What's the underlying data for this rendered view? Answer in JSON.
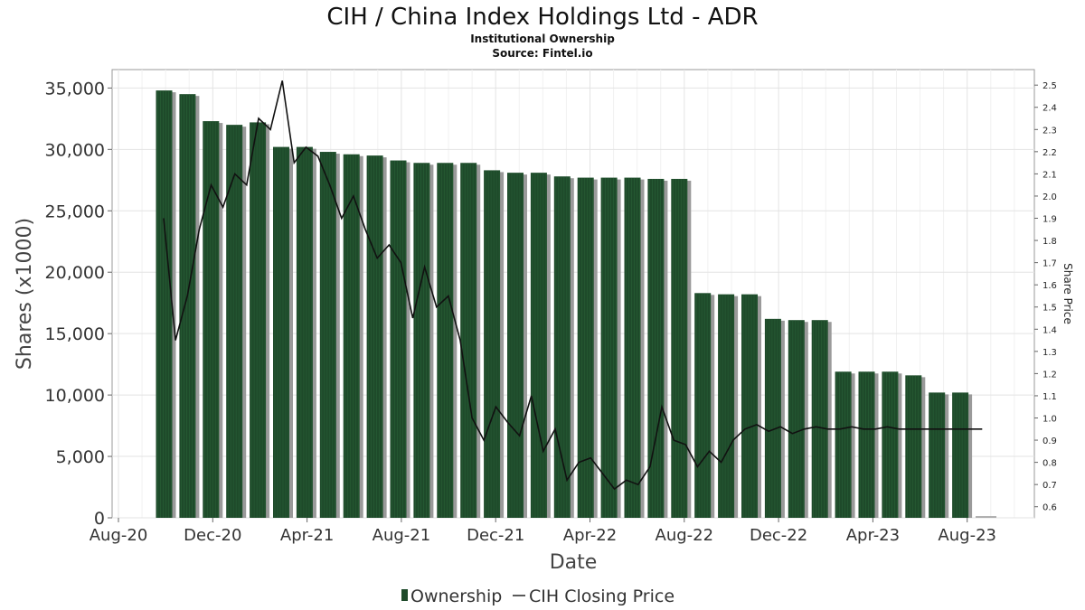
{
  "chart_data": {
    "type": "bar",
    "title": "CIH / China Index Holdings Ltd - ADR",
    "subtitle": "Institutional Ownership",
    "source": "Source: Fintel.io",
    "xlabel": "Date",
    "ylabel": "Shares (x1000)",
    "y2label": "Share Price",
    "ylim": [
      0,
      36500
    ],
    "y2lim": [
      0.55,
      2.57
    ],
    "grid": true,
    "legend_position": "bottom",
    "x_tick_labels": [
      "Aug-20",
      "Dec-20",
      "Apr-21",
      "Aug-21",
      "Dec-21",
      "Apr-22",
      "Aug-22",
      "Dec-22",
      "Apr-23",
      "Aug-23"
    ],
    "y_tick_labels": [
      "0",
      "5,000",
      "10,000",
      "15,000",
      "20,000",
      "25,000",
      "30,000",
      "35,000"
    ],
    "y2_tick_labels": [
      "0.6",
      "0.7",
      "0.8",
      "0.9",
      "1.0",
      "1.1",
      "1.2",
      "1.3",
      "1.4",
      "1.5",
      "1.6",
      "1.7",
      "1.8",
      "1.9",
      "2.0",
      "2.1",
      "2.2",
      "2.3",
      "2.4",
      "2.5"
    ],
    "series": [
      {
        "name": "Ownership",
        "kind": "bar",
        "color": "#1e4a2a",
        "values": [
          34800,
          34500,
          32300,
          32000,
          32200,
          30200,
          30200,
          29800,
          29600,
          29500,
          29100,
          28900,
          28900,
          28900,
          28300,
          28100,
          28100,
          27800,
          27700,
          27700,
          27700,
          27600,
          27600,
          18300,
          18200,
          18200,
          16200,
          16100,
          16100,
          11900,
          11900,
          11900,
          11600,
          10200,
          10200
        ]
      },
      {
        "name": "CIH Closing Price",
        "kind": "line",
        "color": "#111111",
        "x_fraction": [
          0.0,
          0.012,
          0.024,
          0.036,
          0.048,
          0.06,
          0.072,
          0.084,
          0.096,
          0.108,
          0.12,
          0.132,
          0.144,
          0.156,
          0.168,
          0.18,
          0.192,
          0.204,
          0.216,
          0.228,
          0.24,
          0.252,
          0.264,
          0.276,
          0.288,
          0.3,
          0.312,
          0.324,
          0.336,
          0.348,
          0.36,
          0.372,
          0.384,
          0.396,
          0.408,
          0.42,
          0.432,
          0.444,
          0.456,
          0.468,
          0.48,
          0.492,
          0.504,
          0.516,
          0.528,
          0.54,
          0.552,
          0.564,
          0.576,
          0.588,
          0.6,
          0.612,
          0.624,
          0.636,
          0.648,
          0.66,
          0.672,
          0.684,
          0.696,
          0.708,
          0.72,
          0.732,
          0.744,
          0.756,
          0.768,
          0.78,
          0.792,
          0.804,
          0.816,
          0.828
        ],
        "values": [
          1.9,
          1.35,
          1.55,
          1.85,
          2.05,
          1.95,
          2.1,
          2.05,
          2.35,
          2.3,
          2.52,
          2.15,
          2.22,
          2.18,
          2.05,
          1.9,
          2.0,
          1.85,
          1.72,
          1.78,
          1.7,
          1.45,
          1.68,
          1.5,
          1.55,
          1.35,
          1.0,
          0.9,
          1.05,
          0.98,
          0.92,
          1.1,
          0.85,
          0.95,
          0.72,
          0.8,
          0.82,
          0.75,
          0.68,
          0.72,
          0.7,
          0.78,
          1.05,
          0.9,
          0.88,
          0.78,
          0.85,
          0.8,
          0.9,
          0.95,
          0.97,
          0.94,
          0.96,
          0.93,
          0.95,
          0.96,
          0.95,
          0.95,
          0.96,
          0.95,
          0.95,
          0.96,
          0.95,
          0.95,
          0.95,
          0.95,
          0.95,
          0.95,
          0.95,
          0.95
        ]
      }
    ]
  }
}
